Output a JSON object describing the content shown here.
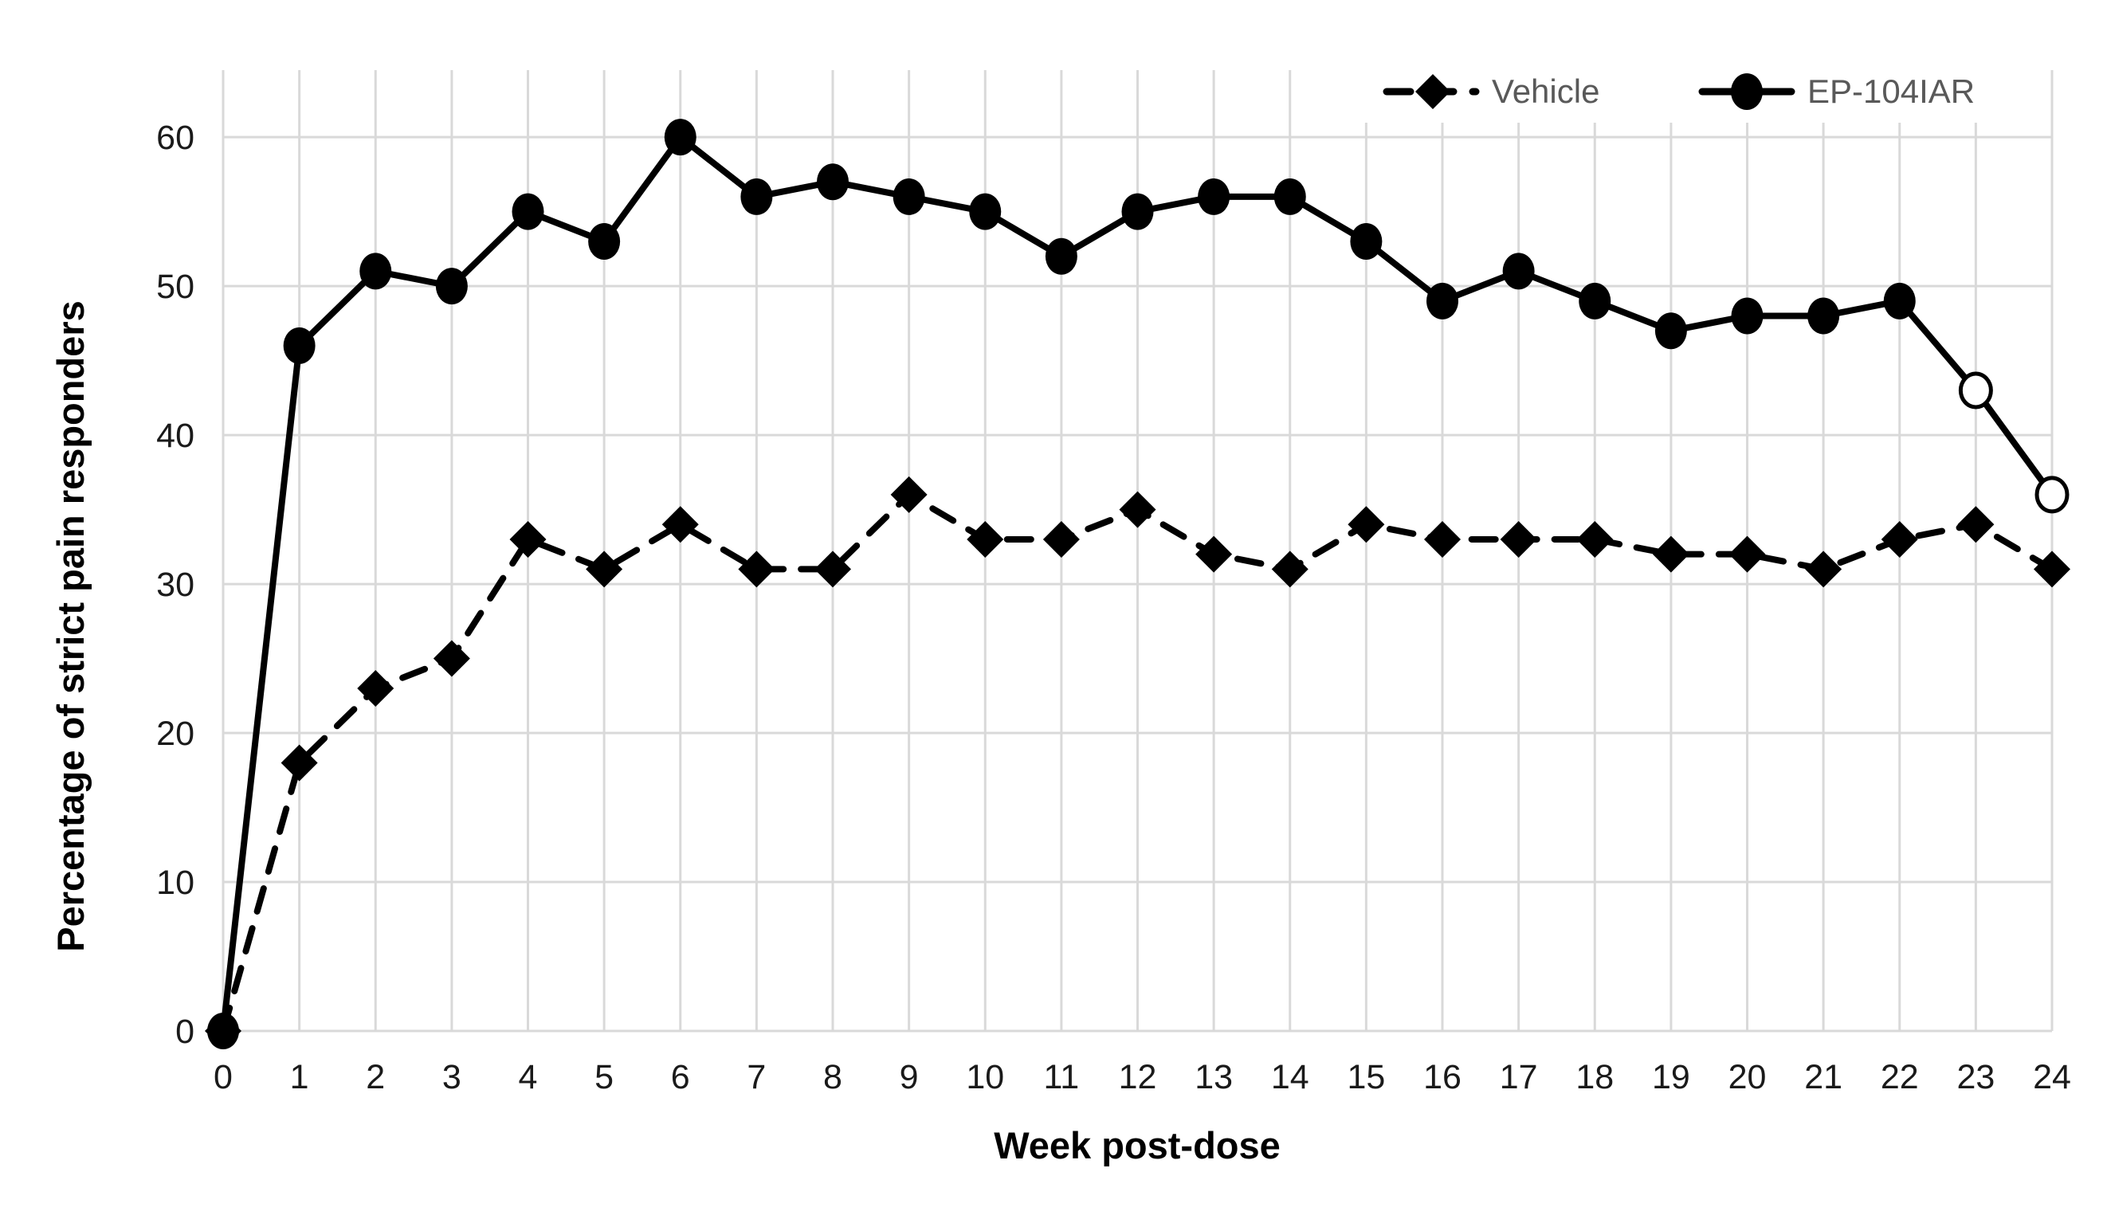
{
  "figure": {
    "background": "#FFFFFF"
  },
  "chart_data": {
    "type": "line",
    "title": "",
    "xlabel": "Week post-dose",
    "ylabel": "Percentage of strict pain responders",
    "x": [
      0,
      1,
      2,
      3,
      4,
      5,
      6,
      7,
      8,
      9,
      10,
      11,
      12,
      13,
      14,
      15,
      16,
      17,
      18,
      19,
      20,
      21,
      22,
      23,
      24
    ],
    "xticks": [
      0,
      1,
      2,
      3,
      4,
      5,
      6,
      7,
      8,
      9,
      10,
      11,
      12,
      13,
      14,
      15,
      16,
      17,
      18,
      19,
      20,
      21,
      22,
      23,
      24
    ],
    "yticks": [
      0,
      10,
      20,
      30,
      40,
      50,
      60
    ],
    "xlim": [
      0,
      24
    ],
    "ylim": [
      0,
      64.5
    ],
    "grid": true,
    "legend_position": "top-right-inside",
    "series": [
      {
        "name": "Vehicle",
        "marker": "diamond",
        "line_style": "dashed",
        "color": "#000000",
        "values": [
          0,
          18,
          23,
          25,
          33,
          31,
          34,
          31,
          31,
          36,
          33,
          33,
          35,
          32,
          31,
          34,
          33,
          33,
          33,
          32,
          32,
          31,
          33,
          34,
          31
        ],
        "open_marker_weeks": []
      },
      {
        "name": "EP-104IAR",
        "marker": "circle",
        "line_style": "solid",
        "color": "#000000",
        "values": [
          0,
          46,
          51,
          50,
          55,
          53,
          60,
          56,
          57,
          56,
          55,
          52,
          55,
          56,
          56,
          53,
          49,
          51,
          49,
          47,
          48,
          48,
          49,
          43,
          36
        ],
        "open_marker_weeks": [
          23,
          24
        ]
      }
    ],
    "colors": {
      "grid": "#D9D9D9",
      "tick_label": "#1A1A1A",
      "axis_title": "#000000",
      "legend_text": "#595959",
      "open_marker_fill": "#FFFFFF",
      "legend_background": "#FFFFFF"
    }
  }
}
